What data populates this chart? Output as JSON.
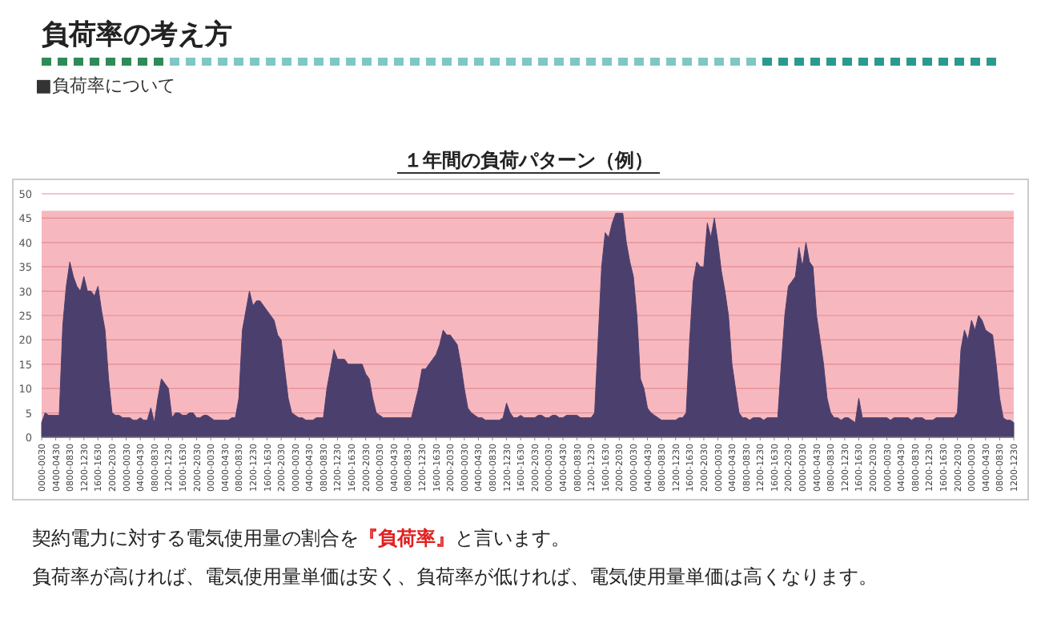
{
  "chart_data": {
    "type": "area",
    "title": "１年間の負荷パターン（例）",
    "annotations": [
      "負荷率の考え方",
      "■負荷率について",
      "契約電力に対する電気使用量の割合を『負荷率』と言います。",
      "負荷率が高ければ、電気使用量単価は安く、負荷率が低ければ、電気使用量単価は高くなります。"
    ],
    "categories": [
      "0000-0030",
      null,
      null,
      null,
      "0400-0430",
      null,
      null,
      null,
      "0800-0830",
      null,
      null,
      null,
      "1200-1230",
      null,
      null,
      null,
      "1600-1630",
      null,
      null,
      null,
      "2000-2030",
      null,
      null,
      null,
      "0000-0030",
      null,
      null,
      null,
      "0400-0430",
      null,
      null,
      null,
      "0800-0830",
      null,
      null,
      null,
      "1200-1230",
      null,
      null,
      null,
      "1600-1630",
      null,
      null,
      null,
      "2000-2030",
      null,
      null,
      null,
      "0000-0030",
      null,
      null,
      null,
      "0400-0430",
      null,
      null,
      null,
      "0800-0830",
      null,
      null,
      null,
      "1200-1230",
      null,
      null,
      null,
      "1600-1630",
      null,
      null,
      null,
      "2000-2030",
      null,
      null,
      null,
      "0000-0030",
      null,
      null,
      null,
      "0400-0430",
      null,
      null,
      null,
      "0800-0830",
      null,
      null,
      null,
      "1200-1230",
      null,
      null,
      null,
      "1600-1630",
      null,
      null,
      null,
      "2000-2030",
      null,
      null,
      null,
      "0000-0030",
      null,
      null,
      null,
      "0400-0430",
      null,
      null,
      null,
      "0800-0830",
      null,
      null,
      null,
      "1200-1230",
      null,
      null,
      null,
      "1600-1630",
      null,
      null,
      null,
      "2000-2030",
      null,
      null,
      null,
      "0000-0030",
      null,
      null,
      null,
      "0400-0430",
      null,
      null,
      null,
      "0800-0830",
      null,
      null,
      null,
      "1200-1230",
      null,
      null,
      null,
      "1600-1630",
      null,
      null,
      null,
      "2000-2030",
      null,
      null,
      null,
      "0000-0030",
      null,
      null,
      null,
      "0400-0430",
      null,
      null,
      null,
      "0800-0830",
      null,
      null,
      null,
      "1200-1230",
      null,
      null,
      null,
      "1600-1630",
      null,
      null,
      null,
      "2000-2030",
      null,
      null,
      null,
      "0000-0030",
      null,
      null,
      null,
      "0400-0430",
      null,
      null,
      null,
      "0800-0830",
      null,
      null,
      null,
      "1200-1230",
      null,
      null,
      null,
      "1600-1630",
      null,
      null,
      null,
      "2000-2030",
      null,
      null,
      null,
      "0000-0030",
      null,
      null,
      null,
      "0400-0430",
      null,
      null,
      null,
      "0800-0830",
      null,
      null,
      null,
      "1200-1230",
      null,
      null,
      null,
      "1600-1630",
      null,
      null,
      null,
      "2000-2030",
      null,
      null,
      null,
      "0000-0030",
      null,
      null,
      null,
      "0400-0430",
      null,
      null,
      null,
      "0800-0830",
      null,
      null,
      null,
      "1200-1230",
      null,
      null,
      null,
      "1600-1630",
      null,
      null,
      null,
      "2000-2030",
      null,
      null,
      null,
      "0000-0030",
      null,
      null,
      null,
      "0400-0430",
      null,
      null,
      null,
      "0800-0830",
      null,
      null,
      null,
      "1200-1230",
      null,
      null,
      null,
      "1600-1630",
      null,
      null,
      null,
      "2000-2030",
      null,
      null,
      null,
      "0000-0030",
      null,
      null,
      null,
      "0400-0430",
      null,
      null,
      null,
      "0800-0830",
      null,
      null,
      null,
      "1200-1230"
    ],
    "series": [
      {
        "color": "#4b3f6e",
        "values": [
          3,
          5,
          4.5,
          4.5,
          4.5,
          4.5,
          23,
          31,
          36,
          33,
          31,
          30,
          33,
          30,
          30,
          29,
          31,
          26,
          22,
          12,
          5,
          4.5,
          4.5,
          4,
          4,
          4,
          3.5,
          3.5,
          4,
          3.5,
          3.5,
          6,
          3,
          8,
          12,
          11,
          10,
          4,
          5,
          5,
          4.5,
          4.5,
          5,
          5,
          4,
          4,
          4.5,
          4.5,
          4,
          3.5,
          3.5,
          3.5,
          3.5,
          3.5,
          4,
          4,
          8,
          22,
          26,
          30,
          27,
          28,
          28,
          27,
          26,
          25,
          24,
          21,
          20,
          14,
          8,
          5,
          4.5,
          4,
          4,
          3.5,
          3.5,
          3.5,
          4,
          4,
          4,
          10,
          14,
          18,
          16,
          16,
          16,
          15,
          15,
          15,
          15,
          15,
          13,
          12,
          8,
          5,
          4.5,
          4,
          4,
          4,
          4,
          4,
          4,
          4,
          4,
          4,
          7,
          10,
          14,
          14,
          15,
          16,
          17,
          19,
          22,
          21,
          21,
          20,
          19,
          15,
          10,
          6,
          5,
          4.5,
          4,
          4,
          3.5,
          3.5,
          3.5,
          3.5,
          3.5,
          4,
          7,
          5,
          4,
          4,
          4.5,
          4,
          4,
          4,
          4,
          4.5,
          4.5,
          4,
          4,
          4.5,
          4.5,
          4,
          4,
          4.5,
          4.5,
          4.5,
          4.5,
          4,
          4,
          4,
          4,
          5,
          20,
          35,
          42,
          41,
          44,
          46,
          46,
          46,
          40,
          36,
          33,
          25,
          12,
          10,
          6,
          5,
          4.5,
          4,
          3.5,
          3.5,
          3.5,
          3.5,
          3.5,
          4,
          4,
          5,
          20,
          32,
          36,
          35,
          35,
          44,
          41,
          45,
          40,
          34,
          30,
          25,
          15,
          10,
          5,
          4,
          4,
          3.5,
          4,
          4,
          4,
          3.5,
          4,
          4,
          4,
          4,
          15,
          25,
          31,
          32,
          33,
          39,
          35,
          40,
          36,
          35,
          25,
          20,
          15,
          8,
          5,
          4,
          4,
          3.5,
          4,
          4,
          3.5,
          3,
          8,
          4,
          4,
          4,
          4,
          4,
          4,
          4,
          4,
          3.5,
          4,
          4,
          4,
          4,
          4,
          3.5,
          4,
          4,
          4,
          3.5,
          3.5,
          3.5,
          4,
          4,
          4,
          4,
          4,
          4,
          5,
          18,
          22,
          20,
          24,
          22,
          25,
          24,
          22,
          21.5,
          21,
          15,
          8,
          4,
          3.5,
          3.5,
          3
        ]
      }
    ],
    "ylim": [
      0,
      50
    ],
    "yticks": [
      0,
      5,
      10,
      15,
      20,
      25,
      30,
      35,
      40,
      45,
      50
    ],
    "grid": "y",
    "bands": [
      {
        "axis": "y",
        "from": 0,
        "to": 46.5,
        "color": "#f6b8be"
      }
    ]
  }
}
